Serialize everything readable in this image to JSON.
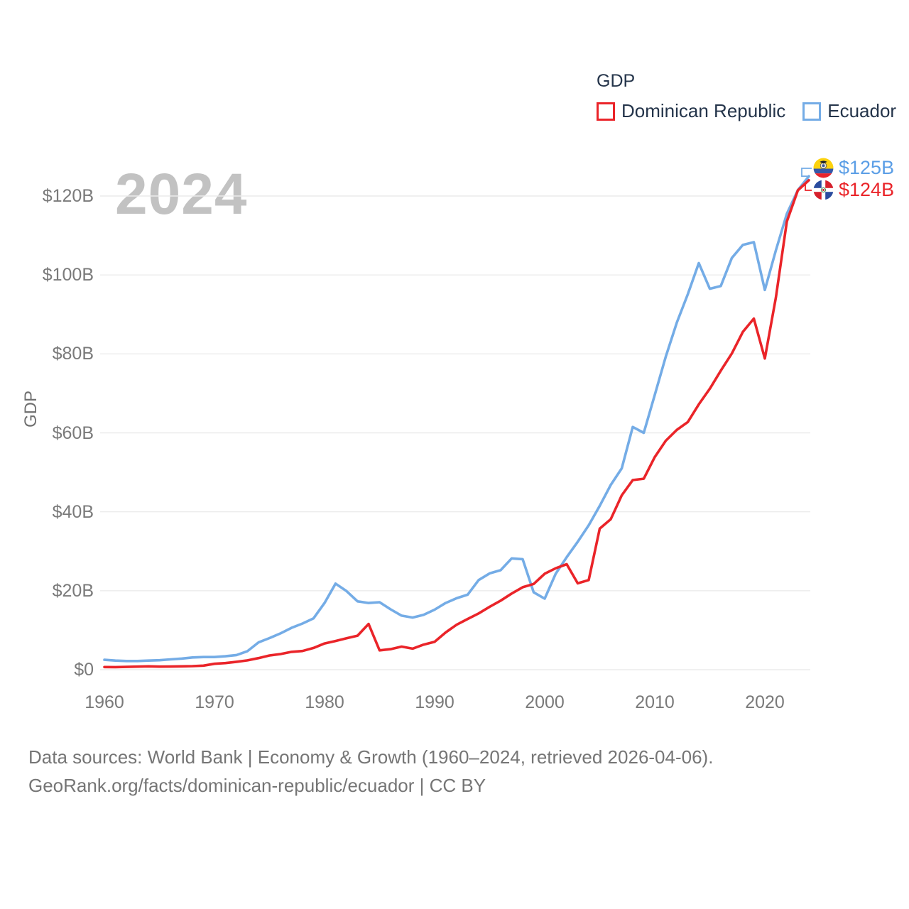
{
  "watermark": "2024",
  "legend": {
    "title": "GDP",
    "series": [
      {
        "label": "Dominican Republic",
        "color": "#ea2429"
      },
      {
        "label": "Ecuador",
        "color": "#74ace6"
      }
    ]
  },
  "y_axis": {
    "label": "GDP",
    "ticks": [
      "$0",
      "$20B",
      "$40B",
      "$60B",
      "$80B",
      "$100B",
      "$120B"
    ]
  },
  "x_axis": {
    "ticks": [
      "1960",
      "1970",
      "1980",
      "1990",
      "2000",
      "2010",
      "2020"
    ]
  },
  "end_labels": [
    {
      "series": "Ecuador",
      "value": "$125B",
      "color": "#5b9ee6"
    },
    {
      "series": "Dominican Republic",
      "value": "$124B",
      "color": "#ea2429"
    }
  ],
  "footer": {
    "line1": "Data sources: World Bank | Economy & Growth (1960–2024, retrieved 2026-04-06).",
    "line2": "GeoRank.org/facts/dominican-republic/ecuador | CC BY"
  },
  "chart_data": {
    "type": "line",
    "title": "GDP",
    "ylabel": "GDP",
    "unit": "billion USD",
    "grid": "horizontal",
    "legend_position": "top-right",
    "xlim": [
      1960,
      2024
    ],
    "ylim": [
      0,
      130
    ],
    "y_ticks_billions": [
      0,
      20,
      40,
      60,
      80,
      100,
      120
    ],
    "x_ticks": [
      1960,
      1970,
      1980,
      1990,
      2000,
      2010,
      2020
    ],
    "x": [
      1960,
      1961,
      1962,
      1963,
      1964,
      1965,
      1966,
      1967,
      1968,
      1969,
      1970,
      1971,
      1972,
      1973,
      1974,
      1975,
      1976,
      1977,
      1978,
      1979,
      1980,
      1981,
      1982,
      1983,
      1984,
      1985,
      1986,
      1987,
      1988,
      1989,
      1990,
      1991,
      1992,
      1993,
      1994,
      1995,
      1996,
      1997,
      1998,
      1999,
      2000,
      2001,
      2002,
      2003,
      2004,
      2005,
      2006,
      2007,
      2008,
      2009,
      2010,
      2011,
      2012,
      2013,
      2014,
      2015,
      2016,
      2017,
      2018,
      2019,
      2020,
      2021,
      2022,
      2023,
      2024
    ],
    "series": [
      {
        "name": "Ecuador",
        "color": "#74ace6",
        "end_value_label": "$125B",
        "values": [
          2.5,
          2.3,
          2.2,
          2.2,
          2.3,
          2.4,
          2.6,
          2.8,
          3.1,
          3.2,
          3.2,
          3.4,
          3.7,
          4.7,
          6.9,
          8.0,
          9.2,
          10.6,
          11.7,
          13.0,
          16.9,
          21.8,
          19.9,
          17.3,
          16.9,
          17.1,
          15.3,
          13.7,
          13.2,
          13.9,
          15.2,
          16.9,
          18.1,
          19.0,
          22.7,
          24.4,
          25.2,
          28.2,
          28.0,
          19.6,
          18.0,
          24.3,
          28.5,
          32.4,
          36.6,
          41.5,
          46.8,
          51.0,
          61.5,
          60.0,
          69.6,
          79.3,
          87.9,
          95.1,
          103.0,
          96.5,
          97.2,
          104.3,
          107.6,
          108.3,
          96.2,
          106.2,
          115.5,
          121.5,
          125.0
        ]
      },
      {
        "name": "Dominican Republic",
        "color": "#ea2429",
        "end_value_label": "$124B",
        "values": [
          0.67,
          0.64,
          0.71,
          0.78,
          0.85,
          0.77,
          0.8,
          0.84,
          0.9,
          1.02,
          1.49,
          1.67,
          1.99,
          2.35,
          2.93,
          3.6,
          3.95,
          4.51,
          4.73,
          5.5,
          6.63,
          7.27,
          7.96,
          8.62,
          11.59,
          4.9,
          5.2,
          5.85,
          5.33,
          6.35,
          7.07,
          9.42,
          11.39,
          12.84,
          14.25,
          15.94,
          17.48,
          19.29,
          20.88,
          21.71,
          24.31,
          25.7,
          26.72,
          21.87,
          22.71,
          35.73,
          38.12,
          44.17,
          48.03,
          48.38,
          53.86,
          58.0,
          60.74,
          62.73,
          67.21,
          71.17,
          75.76,
          80.09,
          85.56,
          88.94,
          78.84,
          94.24,
          113.54,
          121.44,
          124.0
        ]
      }
    ]
  }
}
